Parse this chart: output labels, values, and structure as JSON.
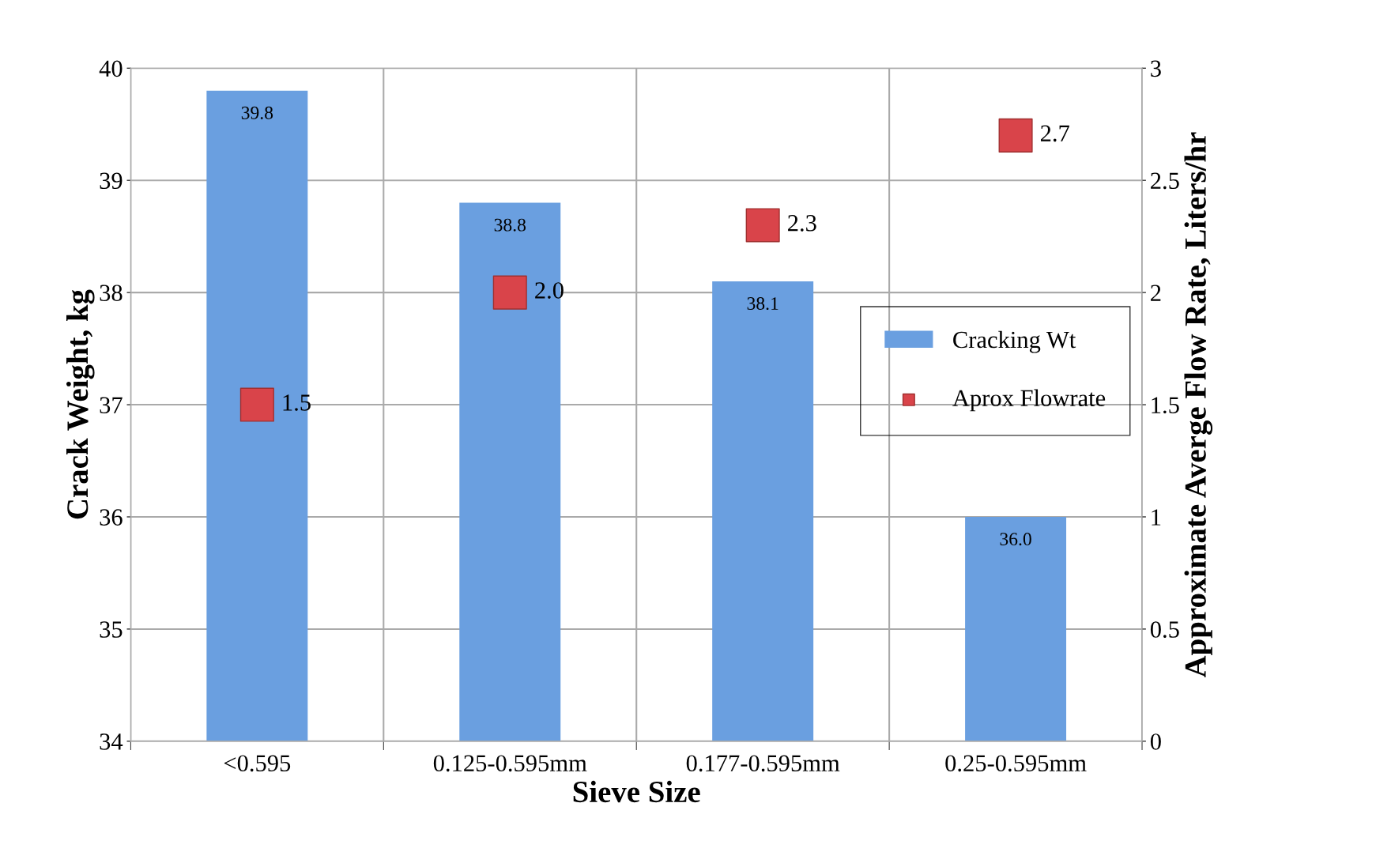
{
  "chart_data": {
    "type": "bar",
    "xlabel": "Sieve Size",
    "ylabel": "Crack Weight, kg",
    "y2label": "Approximate Averge Flow Rate, Liters/hr",
    "categories": [
      "<0.595",
      "0.125-0.595mm",
      "0.177-0.595mm",
      "0.25-0.595mm"
    ],
    "series": [
      {
        "name": "Cracking Wt",
        "color": "#6a9fe0",
        "values": [
          39.8,
          38.8,
          38.1,
          36.0
        ],
        "value_labels": [
          "39.8",
          "38.8",
          "38.1",
          "36.0"
        ]
      },
      {
        "name": "Aprox Flowrate",
        "type": "scatter",
        "axis": "y2",
        "marker": "square",
        "color": "#d9444a",
        "values": [
          1.5,
          2.0,
          2.3,
          2.7
        ],
        "value_labels": [
          "1.5",
          "2.0",
          "2.3",
          "2.7"
        ]
      }
    ],
    "ylim": [
      34,
      40
    ],
    "yticks": [
      34,
      35,
      36,
      37,
      38,
      39,
      40
    ],
    "y2lim": [
      0,
      3
    ],
    "y2ticks": [
      0,
      {
        "value": 0.5,
        "label": "0.5"
      },
      1,
      {
        "value": 1.5,
        "label": "1.5"
      },
      2,
      {
        "value": 2.5,
        "label": "2.5"
      },
      3
    ],
    "grid": true,
    "legend": "right"
  }
}
